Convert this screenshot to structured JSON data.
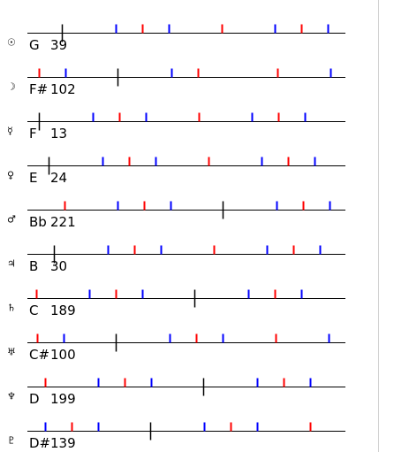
{
  "rows": [
    {
      "symbol": "☉",
      "note": "G",
      "degree": 39,
      "blue": [
        100,
        160,
        280,
        340
      ],
      "red": [
        130,
        220,
        310
      ]
    },
    {
      "symbol": "☽",
      "note": "F#",
      "degree": 102,
      "blue": [
        43,
        163,
        343
      ],
      "red": [
        13,
        193,
        283
      ]
    },
    {
      "symbol": "☿",
      "note": "F",
      "degree": 13,
      "blue": [
        74,
        134,
        254,
        314
      ],
      "red": [
        104,
        194,
        284
      ]
    },
    {
      "symbol": "♀",
      "note": "E",
      "degree": 24,
      "blue": [
        85,
        145,
        265,
        325
      ],
      "red": [
        115,
        205,
        295
      ]
    },
    {
      "symbol": "♂",
      "note": "Bb",
      "degree": 221,
      "blue": [
        102,
        162,
        282,
        342
      ],
      "red": [
        42,
        132,
        312
      ]
    },
    {
      "symbol": "♃",
      "note": "B",
      "degree": 30,
      "blue": [
        91,
        151,
        271,
        331
      ],
      "red": [
        121,
        211,
        301
      ]
    },
    {
      "symbol": "♄",
      "note": "C",
      "degree": 189,
      "blue": [
        70,
        130,
        250,
        310
      ],
      "red": [
        10,
        100,
        280
      ]
    },
    {
      "symbol": "♅",
      "note": "C#",
      "degree": 100,
      "blue": [
        41,
        161,
        221,
        341
      ],
      "red": [
        11,
        191,
        281
      ]
    },
    {
      "symbol": "♆",
      "note": "D",
      "degree": 199,
      "blue": [
        80,
        140,
        260,
        320
      ],
      "red": [
        20,
        110,
        290
      ]
    },
    {
      "symbol": "♇",
      "note": "D#",
      "degree": 139,
      "blue": [
        20,
        80,
        200,
        260
      ],
      "red": [
        50,
        230,
        320
      ]
    }
  ]
}
